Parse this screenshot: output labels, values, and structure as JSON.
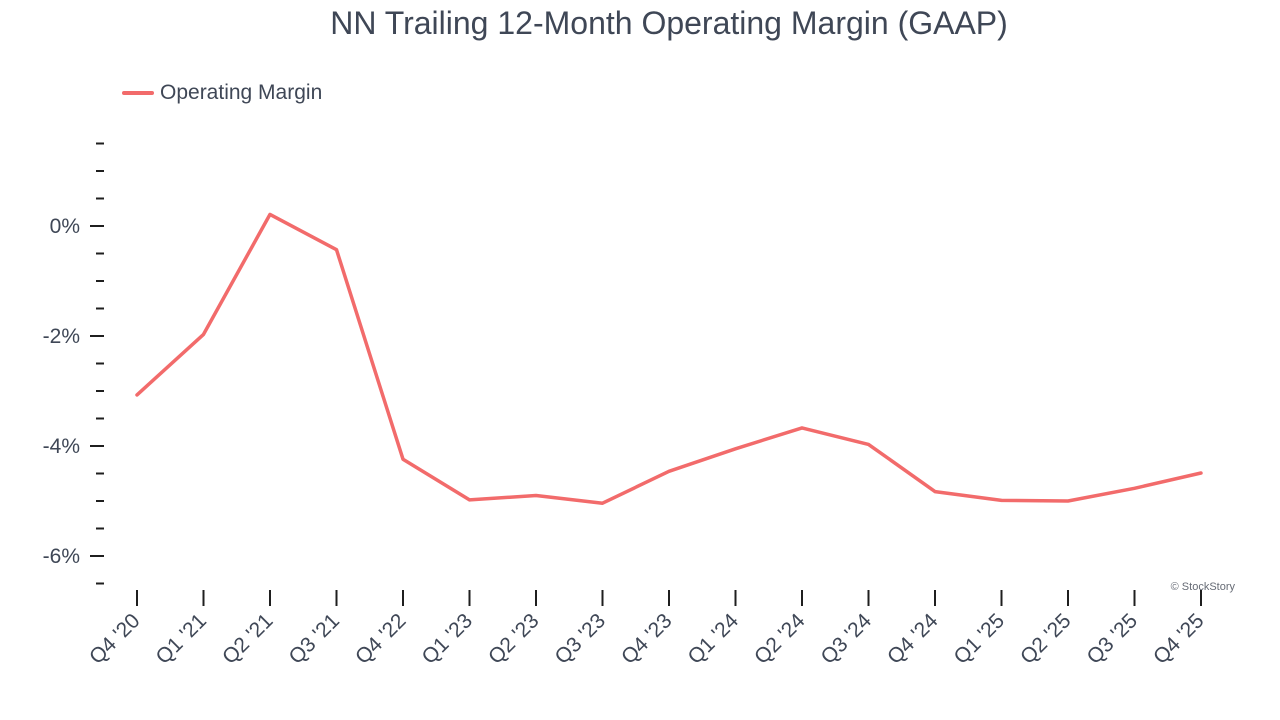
{
  "chart_data": {
    "type": "line",
    "title": "NN Trailing 12-Month Operating Margin (GAAP)",
    "xlabel": "",
    "ylabel": "",
    "categories": [
      "Q4 '20",
      "Q1 '21",
      "Q2 '21",
      "Q3 '21",
      "Q4 '22",
      "Q1 '23",
      "Q2 '23",
      "Q3 '23",
      "Q4 '23",
      "Q1 '24",
      "Q2 '24",
      "Q3 '24",
      "Q4 '24",
      "Q1 '25",
      "Q2 '25",
      "Q3 '25",
      "Q4 '25"
    ],
    "series": [
      {
        "name": "Operating Margin",
        "color": "#f26b6b",
        "values": [
          -3.07,
          -1.97,
          0.21,
          -0.43,
          -4.24,
          -4.98,
          -4.9,
          -5.04,
          -4.46,
          -4.05,
          -3.67,
          -3.97,
          -4.83,
          -4.99,
          -5.0,
          -4.77,
          -4.49
        ]
      }
    ],
    "y_ticks": [
      {
        "value": 0,
        "label": "0%"
      },
      {
        "value": -2,
        "label": "-2%"
      },
      {
        "value": -4,
        "label": "-4%"
      },
      {
        "value": -6,
        "label": "-6%"
      }
    ],
    "ylim": [
      -6.5,
      1.5
    ],
    "grid": false,
    "legend_position": "top-left"
  },
  "watermark": "© StockStory"
}
